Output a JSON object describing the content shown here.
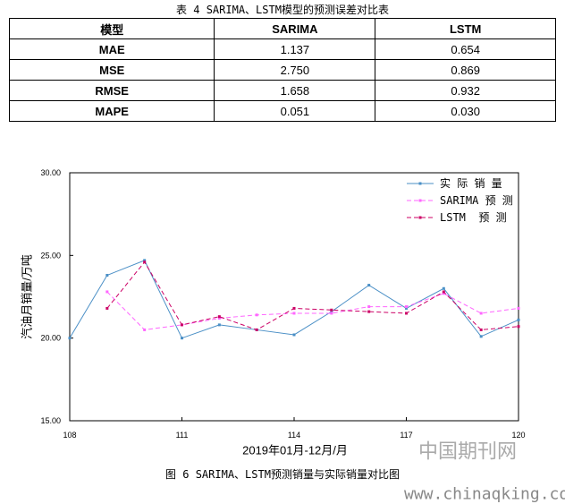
{
  "table": {
    "caption": "表 4 SARIMA、LSTM模型的预测误差对比表",
    "headers": [
      "模型",
      "SARIMA",
      "LSTM"
    ],
    "rows": [
      [
        "MAE",
        "1.137",
        "0.654"
      ],
      [
        "MSE",
        "2.750",
        "0.869"
      ],
      [
        "RMSE",
        "1.658",
        "0.932"
      ],
      [
        "MAPE",
        "0.051",
        "0.030"
      ]
    ]
  },
  "chart_data": {
    "type": "line",
    "x_label": "2019年01月-12月/月",
    "y_label": "汽油月销量/万吨",
    "caption": "图 6 SARIMA、LSTM预测销量与实际销量对比图",
    "x": [
      108,
      109,
      110,
      111,
      112,
      113,
      114,
      115,
      116,
      117,
      118,
      119,
      120
    ],
    "series": [
      {
        "name": "实 际 销 量",
        "color": "#4a8fc6",
        "dash": false,
        "values": [
          20.0,
          23.8,
          24.7,
          20.0,
          20.8,
          20.5,
          20.2,
          21.6,
          23.2,
          21.8,
          23.0,
          20.1,
          21.1
        ]
      },
      {
        "name": "SARIMA 预 测",
        "color": "#ff66ff",
        "dash": true,
        "values": [
          null,
          22.8,
          20.5,
          20.8,
          21.2,
          21.4,
          21.5,
          21.5,
          21.9,
          21.9,
          22.7,
          21.5,
          21.8
        ]
      },
      {
        "name": "LSTM  预 测",
        "color": "#cc0066",
        "dash": true,
        "values": [
          null,
          21.8,
          24.6,
          20.8,
          21.3,
          20.5,
          21.8,
          21.7,
          21.6,
          21.5,
          22.8,
          20.5,
          20.7
        ]
      }
    ],
    "xlim": [
      108,
      120
    ],
    "xticks": [
      108,
      111,
      114,
      117,
      120
    ],
    "ylim": [
      15,
      30
    ],
    "yticks": [
      {
        "value": 15,
        "label": "15.00"
      },
      {
        "value": 20,
        "label": "20.00"
      },
      {
        "value": 25,
        "label": "25.00"
      },
      {
        "value": 30,
        "label": "30.00"
      }
    ],
    "legend": "upper right"
  },
  "watermark": {
    "name": "中国期刊网",
    "url": "www.chinaqking.com"
  }
}
